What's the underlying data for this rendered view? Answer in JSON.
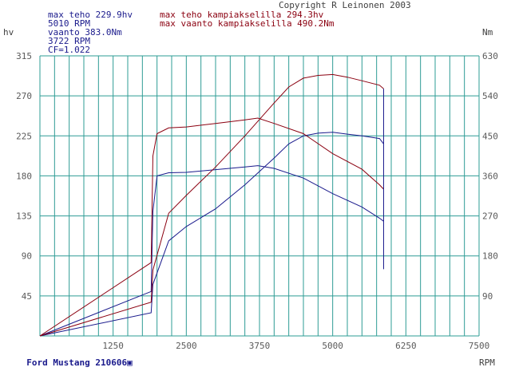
{
  "header": {
    "copyright": "Copyright R Leinonen 2003",
    "max_power": "max teho 229.9hv",
    "max_power_rpm": "5010 RPM",
    "max_torque": "vaanto 383.0Nm",
    "max_torque_rpm": "3722 RPM",
    "correction": "CF=1.022",
    "max_power_crank": "max teho kampiakselilla 294.3hv",
    "max_torque_crank": "max vaanto kampiakselilla 490.2Nm"
  },
  "footer": {
    "car_label": "Ford Mustang 210606",
    "car_marker": "▣"
  },
  "colors": {
    "background": "#ffffff",
    "grid": "#2e9c95",
    "axis_text": "#5a5a5a",
    "wheel_series": "#1a1a8c",
    "crank_series": "#8b0010"
  },
  "chart_data": {
    "type": "line",
    "title": "",
    "xlabel": "RPM",
    "ylabel_left": "hv",
    "ylabel_right": "Nm",
    "xlim": [
      0,
      7500
    ],
    "ylim_left": [
      0,
      315
    ],
    "ylim_right": [
      0,
      630
    ],
    "x_ticks": [
      1250,
      2500,
      3750,
      5000,
      6250,
      7500
    ],
    "y_ticks_left": [
      45,
      90,
      135,
      180,
      225,
      270,
      315
    ],
    "y_ticks_right": [
      90,
      180,
      270,
      360,
      450,
      540,
      630
    ],
    "grid": true,
    "grid_vertical_step_rpm": 250,
    "legend": "none",
    "series": [
      {
        "color": "#1a1a8c",
        "axis": "left",
        "x": [
          0,
          1900,
          1930,
          2200,
          2500,
          3000,
          3500,
          4000,
          4250,
          4500,
          4750,
          5000,
          5250,
          5500,
          5800,
          5870
        ],
        "y": [
          0,
          26,
          58,
          107,
          123,
          143,
          170,
          200,
          216,
          225,
          228,
          229,
          227,
          225,
          222,
          216
        ]
      },
      {
        "color": "#1a1a8c",
        "axis": "right",
        "x": [
          0,
          1900,
          1930,
          2000,
          2200,
          2500,
          3000,
          3500,
          3722,
          4000,
          4500,
          5000,
          5500,
          5800,
          5870
        ],
        "y": [
          0,
          100,
          280,
          360,
          367,
          368,
          374,
          380,
          383,
          377,
          355,
          320,
          290,
          265,
          258
        ]
      },
      {
        "color": "#8b0010",
        "axis": "left",
        "x": [
          0,
          1900,
          1930,
          2200,
          2500,
          3000,
          3500,
          4000,
          4250,
          4500,
          4750,
          5000,
          5250,
          5500,
          5800,
          5870
        ],
        "y": [
          0,
          38,
          74,
          138,
          158,
          190,
          225,
          262,
          280,
          290,
          293,
          294,
          291,
          287,
          282,
          278
        ]
      },
      {
        "color": "#8b0010",
        "axis": "right",
        "x": [
          0,
          1900,
          1930,
          2000,
          2200,
          2500,
          3000,
          3500,
          3722,
          4000,
          4500,
          5000,
          5500,
          5800,
          5870
        ],
        "y": [
          0,
          165,
          405,
          455,
          468,
          470,
          478,
          486,
          490,
          478,
          455,
          410,
          375,
          340,
          330
        ]
      }
    ]
  }
}
